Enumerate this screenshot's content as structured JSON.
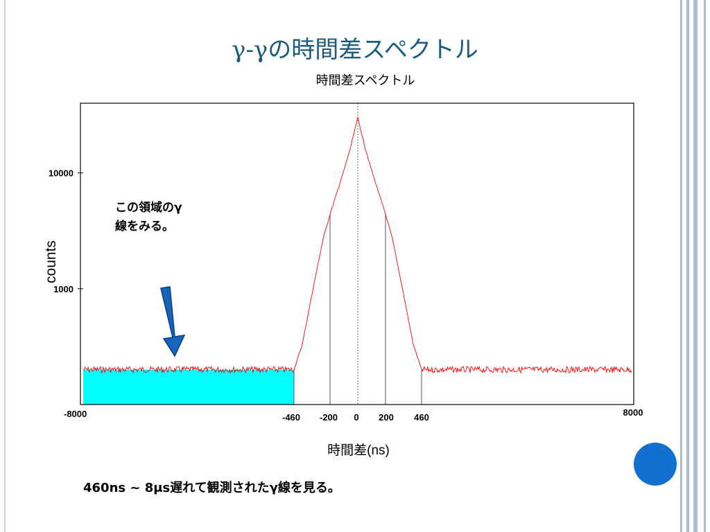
{
  "slide": {
    "title": "γ-γの時間差スペクトル",
    "annotation_line1": "この領域のγ",
    "annotation_line2": "線をみる。",
    "caption": "460ns ~ 8μs遅れて観測されたγ線を見る。",
    "colors": {
      "title": "#1b5b7e",
      "circle": "#1271d0",
      "arrow": "#1565c0",
      "stripes": "#aebbd4"
    }
  },
  "chart_data": {
    "type": "line",
    "title": "時間差スペクトル",
    "xlabel": "時間差(ns)",
    "ylabel": "counts",
    "xlim": [
      -8000,
      8000
    ],
    "y_scale": "log",
    "x_ticks": [
      {
        "value": -8000,
        "label": "-8000"
      },
      {
        "value": -460,
        "label": "-460"
      },
      {
        "value": -200,
        "label": "-200"
      },
      {
        "value": 0,
        "label": "0"
      },
      {
        "value": 200,
        "label": "200"
      },
      {
        "value": 460,
        "label": "460"
      },
      {
        "value": 8000,
        "label": "8000"
      }
    ],
    "y_ticks": [
      {
        "value": 1000,
        "label": "1000"
      },
      {
        "value": 10000,
        "label": "10000"
      }
    ],
    "series": [
      {
        "color": "#ff0000",
        "x": [
          -8000,
          -460,
          -400,
          -330,
          -250,
          -200,
          -150,
          -100,
          -50,
          0,
          50,
          100,
          150,
          200,
          250,
          330,
          400,
          460,
          8000
        ],
        "y": [
          200,
          200,
          330,
          900,
          2700,
          4400,
          6800,
          10500,
          17000,
          30000,
          17000,
          10500,
          6800,
          4400,
          2700,
          900,
          330,
          200,
          200
        ]
      }
    ],
    "highlight_region": {
      "x0": -8000,
      "x1": -460,
      "color": "#00ffff"
    },
    "vertical_markers": [
      -460,
      -200,
      0,
      200,
      460
    ],
    "colors": {
      "line": "#ff0000",
      "highlight": "#00ffff"
    }
  }
}
